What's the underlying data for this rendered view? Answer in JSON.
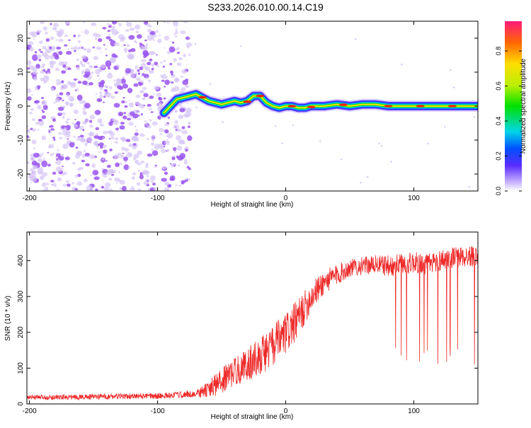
{
  "page_title": "S233.2026.010.00.14.C19",
  "colors": {
    "frame": "#000000",
    "signal": "#ee2a2a",
    "noise": "#9a55f0",
    "noise_light": "#d6c4f7"
  },
  "chart_data": [
    {
      "type": "heatmap",
      "title": "S233.2026.010.00.14.C19",
      "xlabel": "Height of straight line (km)",
      "ylabel": "Frequency (Hz)",
      "xlim": [
        -202,
        150
      ],
      "ylim": [
        -25,
        25
      ],
      "x_ticks": [
        -200,
        -100,
        0,
        100
      ],
      "x_tick_labels": [
        "-200",
        "-100",
        "0",
        "100"
      ],
      "y_ticks": [
        -20,
        -10,
        0,
        10,
        20
      ],
      "y_tick_labels": [
        "-20",
        "-10",
        "0",
        "10",
        "20"
      ],
      "colorbar": {
        "label": "Normalized spectral amplitude",
        "range": [
          0,
          0.97
        ],
        "ticks": [
          0.0,
          0.2,
          0.4,
          0.6,
          0.8
        ],
        "tick_labels": [
          "0.0",
          "0.2",
          "0.4",
          "0.6",
          "0.8"
        ]
      },
      "ridge": {
        "x": [
          -95,
          -90,
          -85,
          -80,
          -75,
          -70,
          -65,
          -60,
          -55,
          -50,
          -45,
          -40,
          -35,
          -30,
          -25,
          -20,
          -15,
          -10,
          -5,
          0,
          5,
          10,
          15,
          20,
          30,
          40,
          50,
          60,
          70,
          80,
          90,
          100,
          110,
          120,
          130,
          140,
          150
        ],
        "y": [
          -2,
          0,
          2,
          2.5,
          3,
          3.5,
          2.5,
          1.5,
          1,
          0.5,
          1,
          1.5,
          1,
          1.5,
          3,
          3,
          1,
          0,
          -0.5,
          0,
          0,
          -0.5,
          -0.5,
          0,
          0,
          0.5,
          0,
          0.5,
          0.5,
          0,
          0,
          0,
          0,
          0,
          0,
          0,
          0
        ]
      },
      "noise_region_x": [
        -202,
        -75
      ]
    },
    {
      "type": "line",
      "xlabel": "Height of straight line (km)",
      "ylabel": "SNR (10 * v/v)",
      "xlim": [
        -202,
        150
      ],
      "ylim": [
        0,
        480
      ],
      "x_ticks": [
        -200,
        -100,
        0,
        100
      ],
      "x_tick_labels": [
        "-200",
        "-100",
        "0",
        "100"
      ],
      "y_ticks": [
        0,
        100,
        200,
        300,
        400
      ],
      "y_tick_labels": [
        "0",
        "100",
        "200",
        "300",
        "400"
      ],
      "series": [
        {
          "name": "SNR",
          "envelope_x": [
            -202,
            -150,
            -100,
            -70,
            -60,
            -50,
            -40,
            -30,
            -20,
            -10,
            0,
            10,
            20,
            30,
            40,
            50,
            60,
            70,
            80,
            90,
            100,
            110,
            120,
            130,
            140,
            150
          ],
          "envelope_y": [
            18,
            20,
            22,
            28,
            40,
            65,
            90,
            110,
            135,
            160,
            195,
            240,
            300,
            340,
            360,
            380,
            385,
            390,
            385,
            390,
            395,
            390,
            400,
            410,
            410,
            415
          ],
          "noise_amplitude": [
            6,
            8,
            8,
            10,
            25,
            35,
            40,
            45,
            55,
            60,
            60,
            55,
            40,
            35,
            30,
            25,
            25,
            25,
            30,
            30,
            30,
            30,
            30,
            30,
            30,
            30
          ],
          "dropout_region_x": [
            80,
            150
          ],
          "dropout_floor": 100
        }
      ]
    }
  ]
}
